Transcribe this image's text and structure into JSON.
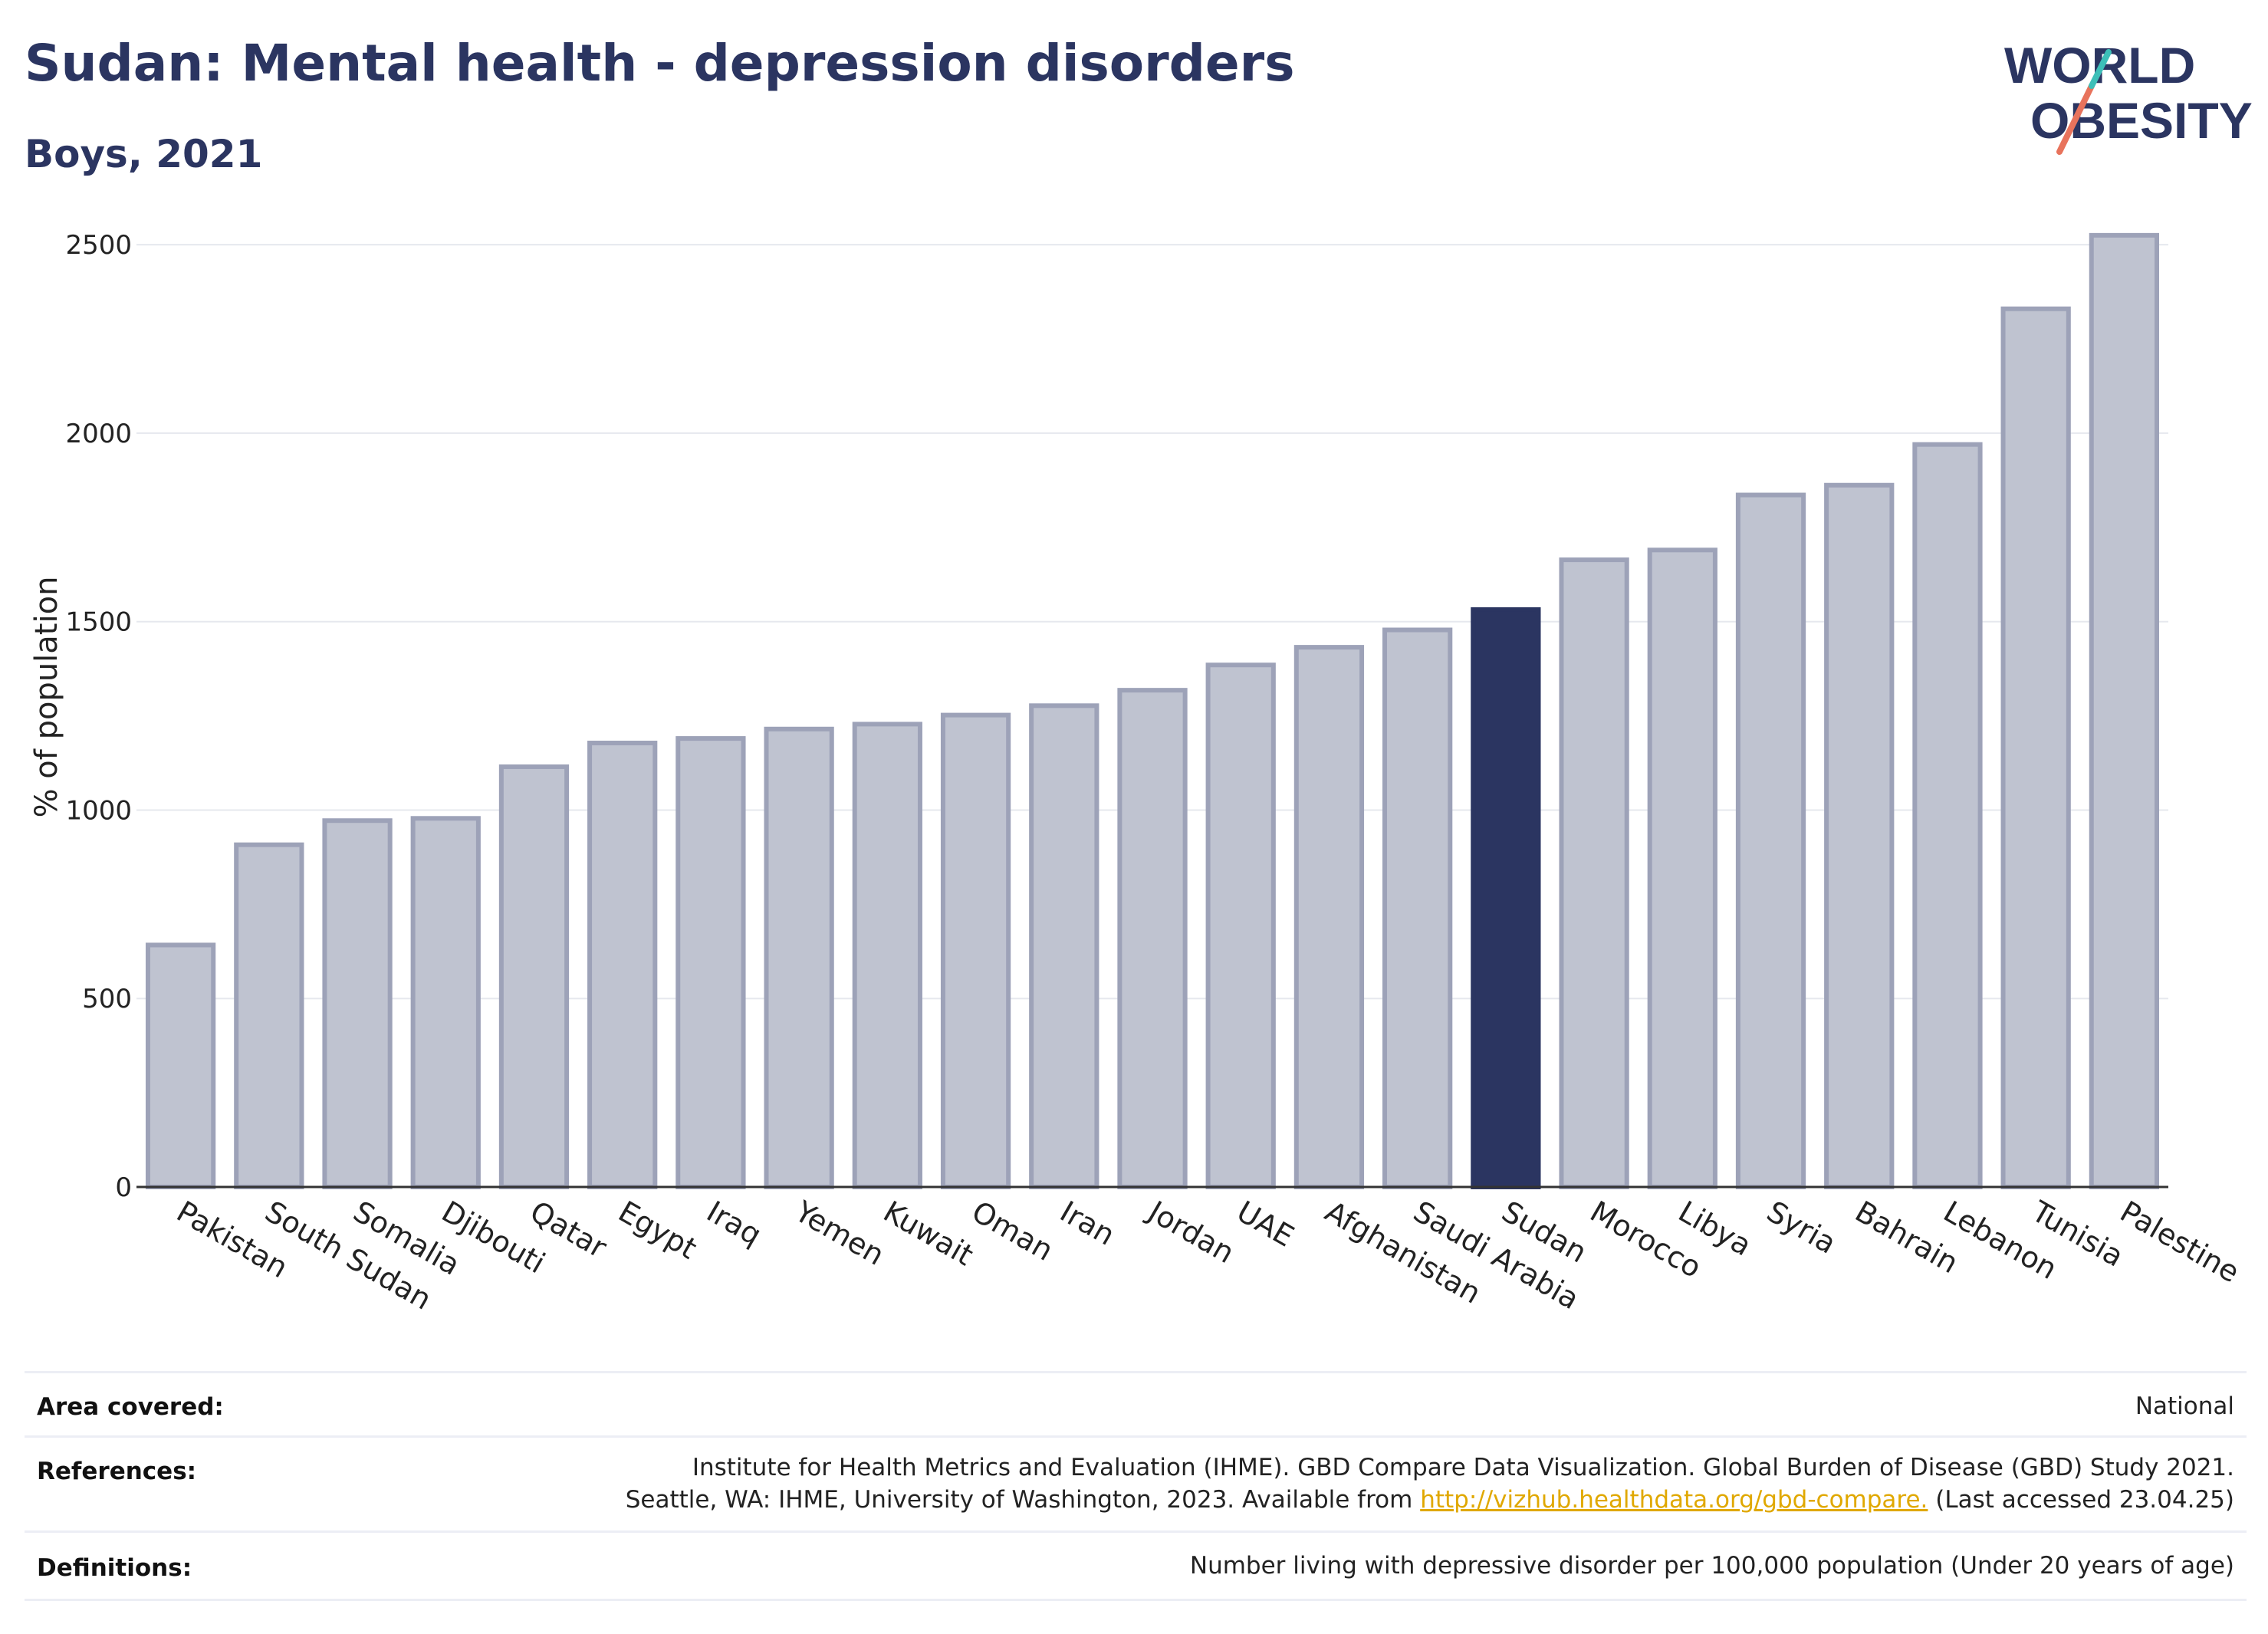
{
  "header": {
    "title": "Sudan: Mental health - depression disorders",
    "subtitle": "Boys, 2021"
  },
  "logo": {
    "line1": "WORLD",
    "line2": "OBESITY"
  },
  "chart_data": {
    "type": "bar",
    "ylabel": "% of population",
    "xlabel": "",
    "ylim": [
      0,
      2600
    ],
    "yticks": [
      0,
      500,
      1000,
      1500,
      2000,
      2500
    ],
    "grid": true,
    "highlight": "Sudan",
    "categories": [
      "Pakistan",
      "South Sudan",
      "Somalia",
      "Djibouti",
      "Qatar",
      "Egypt",
      "Iraq",
      "Yemen",
      "Kuwait",
      "Oman",
      "Iran",
      "Jordan",
      "UAE",
      "Afghanistan",
      "Saudi Arabia",
      "Sudan",
      "Morocco",
      "Libya",
      "Syria",
      "Bahrain",
      "Lebanon",
      "Tunisia",
      "Palestine"
    ],
    "values": [
      642,
      908,
      972,
      978,
      1115,
      1178,
      1190,
      1215,
      1228,
      1252,
      1277,
      1318,
      1385,
      1432,
      1478,
      1532,
      1664,
      1690,
      1836,
      1862,
      1970,
      2330,
      2525
    ],
    "colors": {
      "bar": "#bfc3d0",
      "bar_edge": "#9da2b8",
      "highlight": "#2b3561",
      "grid": "#e6e8ee"
    }
  },
  "info": {
    "area_label": "Area covered:",
    "area_value": "National",
    "references_label": "References:",
    "references_line1": "Institute for Health Metrics and Evaluation (IHME). GBD Compare Data Visualization. Global Burden of Disease (GBD) Study 2021.",
    "references_line2_pre": "Seattle, WA: IHME, University of Washington, 2023. Available from ",
    "references_link": "http://vizhub.healthdata.org/gbd-compare.",
    "references_line2_post": " (Last accessed 23.04.25)",
    "definitions_label": "Definitions:",
    "definitions_value": "Number living with depressive disorder per 100,000 population (Under 20 years of age)"
  }
}
